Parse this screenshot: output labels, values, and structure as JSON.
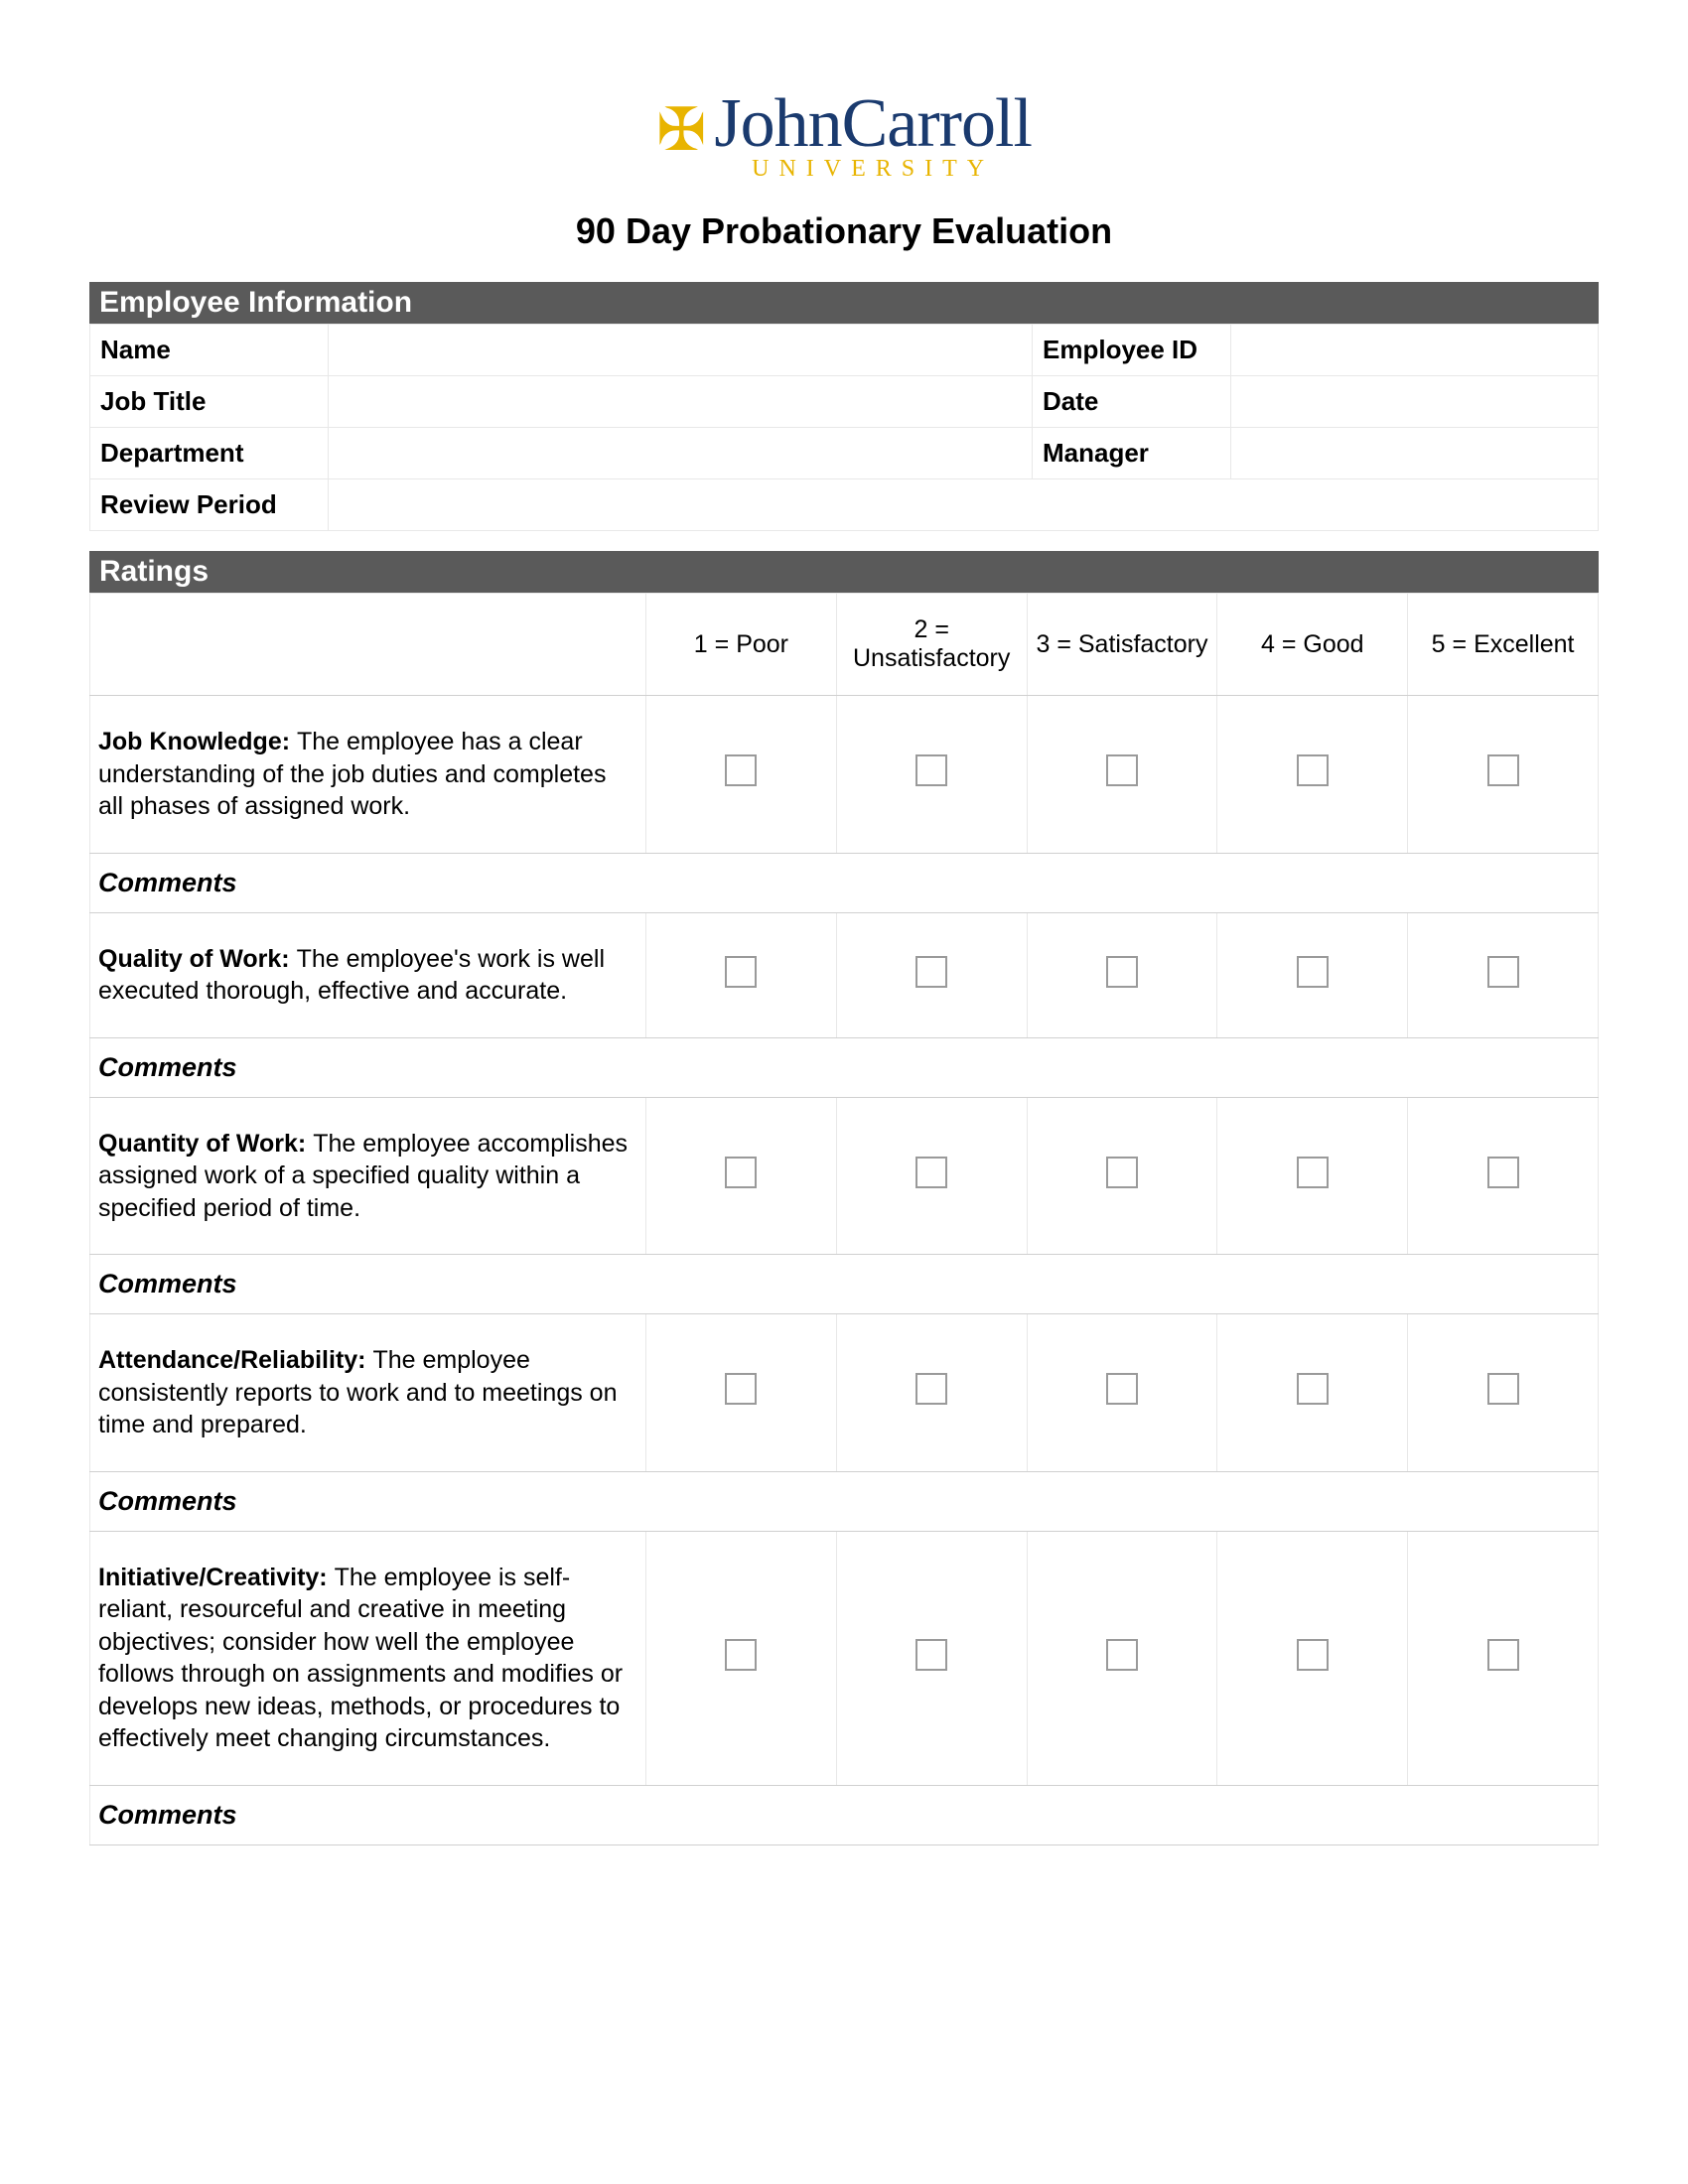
{
  "colors": {
    "section_bar_bg": "#5a5a5a",
    "section_bar_text": "#ffffff",
    "border": "#e8e8e8",
    "border_strong": "#d0d0d0",
    "checkbox_border": "#9a9a9a",
    "logo_blue": "#1a3a6e",
    "logo_gold": "#e8b400",
    "page_bg": "#ffffff"
  },
  "logo": {
    "main": "JohnCarroll",
    "sub": "UNIVERSITY"
  },
  "title": "90 Day Probationary Evaluation",
  "sections": {
    "employee_info": "Employee Information",
    "ratings": "Ratings"
  },
  "info_fields": {
    "name": "Name",
    "employee_id": "Employee ID",
    "job_title": "Job Title",
    "date": "Date",
    "department": "Department",
    "manager": "Manager",
    "review_period": "Review Period"
  },
  "rating_scale": [
    "1 = Poor",
    "2 = Unsatisfactory",
    "3 = Satisfactory",
    "4 = Good",
    "5 = Excellent"
  ],
  "criteria": [
    {
      "title": "Job Knowledge:",
      "desc": "The employee has a clear understanding of the job duties and completes all phases of assigned work."
    },
    {
      "title": "Quality of Work:",
      "desc": "The employee's work is well executed thorough, effective and accurate."
    },
    {
      "title": "Quantity of Work:",
      "desc": "The employee accomplishes assigned work of a specified quality within a specified period of time."
    },
    {
      "title": "Attendance/Reliability:",
      "desc": "The employee consistently reports to work and to meetings on time and prepared."
    },
    {
      "title": "Initiative/Creativity:",
      "desc": "The employee is self-reliant, resourceful and creative in meeting objectives; consider how well the employee follows through on assignments and modifies or develops new ideas, methods, or procedures to effectively meet changing circumstances."
    }
  ],
  "comments_label": "Comments"
}
